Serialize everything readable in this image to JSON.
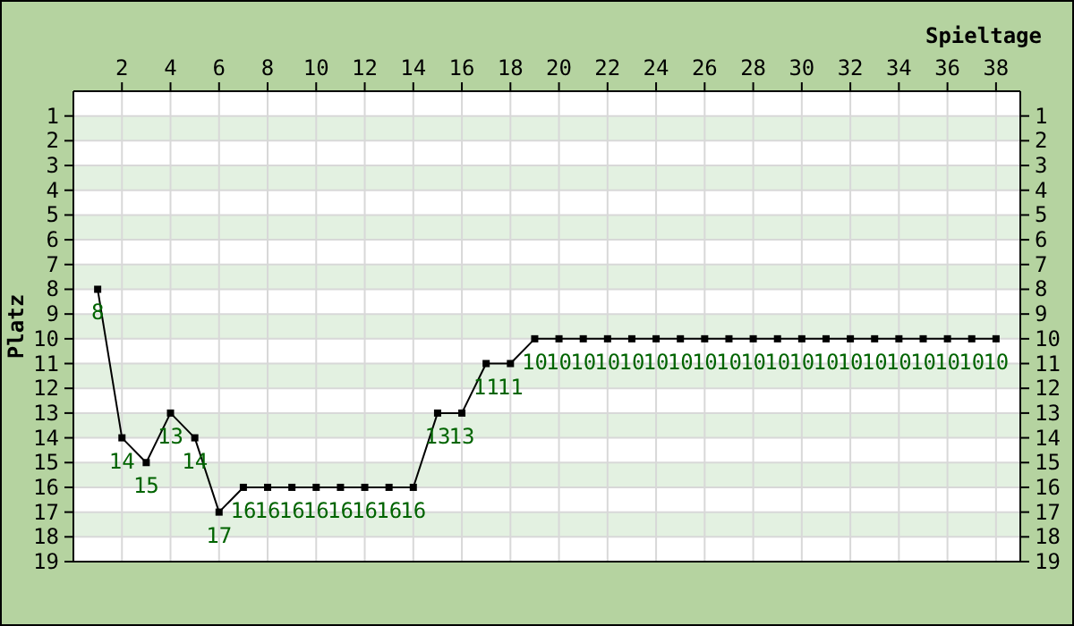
{
  "chart_data": {
    "type": "line",
    "xlabel": "Spieltage",
    "ylabel": "Platz",
    "x": [
      1,
      2,
      3,
      4,
      5,
      6,
      7,
      8,
      9,
      10,
      11,
      12,
      13,
      14,
      15,
      16,
      17,
      18,
      19,
      20,
      21,
      22,
      23,
      24,
      25,
      26,
      27,
      28,
      29,
      30,
      31,
      32,
      33,
      34,
      35,
      36,
      37,
      38
    ],
    "series": [
      {
        "color": "#000000",
        "values": [
          8,
          14,
          15,
          13,
          14,
          17,
          16,
          16,
          16,
          16,
          16,
          16,
          16,
          16,
          13,
          13,
          11,
          11,
          10,
          10,
          10,
          10,
          10,
          10,
          10,
          10,
          10,
          10,
          10,
          10,
          10,
          10,
          10,
          10,
          10,
          10,
          10,
          10
        ]
      }
    ],
    "xlim": [
      0,
      39
    ],
    "xticks": [
      2,
      4,
      6,
      8,
      10,
      12,
      14,
      16,
      18,
      20,
      22,
      24,
      26,
      28,
      30,
      32,
      34,
      36,
      38
    ],
    "ylim": [
      19,
      0
    ],
    "yticks": [
      1,
      2,
      3,
      4,
      5,
      6,
      7,
      8,
      9,
      10,
      11,
      12,
      13,
      14,
      15,
      16,
      17,
      18,
      19
    ],
    "y2lim": [
      19,
      0
    ],
    "y2ticks": [
      1,
      2,
      3,
      4,
      5,
      6,
      7,
      8,
      9,
      10,
      11,
      12,
      13,
      14,
      15,
      16,
      17,
      18,
      19
    ],
    "grid": true,
    "marker": "square",
    "line_style": "solid",
    "data_labels": true
  }
}
